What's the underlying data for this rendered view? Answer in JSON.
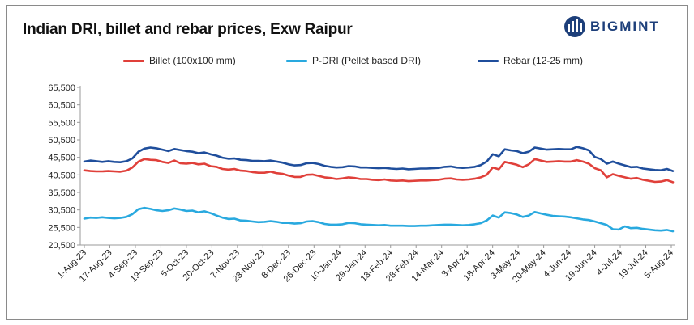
{
  "brand": {
    "name": "BIGMINT",
    "color": "#1d3f7a"
  },
  "chart_data": {
    "type": "line",
    "title": "Indian DRI, billet and rebar prices, Exw Raipur",
    "xlabel": "",
    "ylabel": "",
    "ylim": [
      20500,
      65500
    ],
    "yticks": [
      20500,
      25500,
      30500,
      35500,
      40500,
      45500,
      50500,
      55500,
      60500,
      65500
    ],
    "ytick_labels": [
      "20,500",
      "25,500",
      "30,500",
      "35,500",
      "40,500",
      "45,500",
      "50,500",
      "55,500",
      "60,500",
      "65,500"
    ],
    "x_tick_labels": [
      "1-Aug-23",
      "17-Aug-23",
      "4-Sep-23",
      "19-Sep-23",
      "5-Oct-23",
      "20-Oct-23",
      "7-Nov-23",
      "23-Nov-23",
      "8-Dec-23",
      "26-Dec-23",
      "10-Jan-24",
      "29-Jan-24",
      "13-Feb-24",
      "28-Feb-24",
      "14-Mar-24",
      "3-Apr-24",
      "18-Apr-24",
      "3-May-24",
      "20-May-24",
      "4-Jun-24",
      "19-Jun-24",
      "4-Jul-24",
      "19-Jul-24",
      "5-Aug-24"
    ],
    "grid": false,
    "legend_position": "top",
    "series": [
      {
        "name": "Billet (100x100 mm)",
        "color": "#e0403a",
        "values": [
          41800,
          41600,
          41500,
          41500,
          41600,
          41500,
          41400,
          41700,
          42600,
          44300,
          45000,
          44800,
          44700,
          44200,
          43900,
          44600,
          43800,
          43700,
          43900,
          43500,
          43700,
          43000,
          42800,
          42200,
          42000,
          42200,
          41700,
          41600,
          41300,
          41100,
          41100,
          41400,
          41000,
          40800,
          40300,
          39900,
          39900,
          40500,
          40600,
          40200,
          39800,
          39600,
          39300,
          39500,
          39800,
          39600,
          39300,
          39300,
          39100,
          39000,
          39200,
          38900,
          38800,
          38900,
          38700,
          38800,
          38900,
          38900,
          39000,
          39100,
          39400,
          39500,
          39200,
          39100,
          39200,
          39400,
          39800,
          40500,
          42600,
          42100,
          44200,
          43800,
          43400,
          42700,
          43500,
          45000,
          44600,
          44200,
          44300,
          44400,
          44300,
          44300,
          44700,
          44300,
          43700,
          42400,
          41800,
          39800,
          40700,
          40200,
          39800,
          39400,
          39600,
          39100,
          38800,
          38500,
          38600,
          39000,
          38400
        ]
      },
      {
        "name": "P-DRI (Pellet based DRI)",
        "color": "#29a9df",
        "values": [
          28000,
          28300,
          28200,
          28400,
          28200,
          28100,
          28200,
          28500,
          29300,
          30700,
          31100,
          30800,
          30400,
          30200,
          30400,
          30900,
          30600,
          30200,
          30300,
          29800,
          30100,
          29600,
          28900,
          28300,
          27900,
          28000,
          27500,
          27400,
          27200,
          27000,
          27100,
          27300,
          27100,
          26800,
          26800,
          26600,
          26700,
          27200,
          27300,
          27000,
          26500,
          26300,
          26300,
          26400,
          26800,
          26700,
          26400,
          26300,
          26200,
          26100,
          26200,
          26000,
          26000,
          26000,
          25900,
          25900,
          26000,
          26000,
          26100,
          26200,
          26300,
          26300,
          26200,
          26100,
          26200,
          26400,
          26700,
          27500,
          28900,
          28300,
          29800,
          29600,
          29200,
          28500,
          28900,
          29900,
          29500,
          29100,
          28800,
          28700,
          28600,
          28400,
          28100,
          27800,
          27600,
          27200,
          26700,
          26200,
          25000,
          24900,
          25800,
          25300,
          25400,
          25100,
          24900,
          24700,
          24600,
          24800,
          24400
        ]
      },
      {
        "name": "Rebar (12-25 mm)",
        "color": "#1f4e9c",
        "values": [
          44300,
          44600,
          44400,
          44200,
          44400,
          44200,
          44100,
          44400,
          45200,
          47100,
          48000,
          48300,
          48100,
          47700,
          47300,
          47900,
          47600,
          47300,
          47100,
          46700,
          46900,
          46400,
          46000,
          45400,
          45100,
          45200,
          44800,
          44700,
          44500,
          44500,
          44400,
          44600,
          44300,
          44000,
          43500,
          43200,
          43300,
          43800,
          43900,
          43600,
          43100,
          42800,
          42600,
          42700,
          43000,
          42900,
          42600,
          42600,
          42500,
          42400,
          42500,
          42300,
          42200,
          42300,
          42100,
          42200,
          42300,
          42300,
          42400,
          42500,
          42800,
          42900,
          42600,
          42500,
          42600,
          42800,
          43300,
          44300,
          46400,
          45800,
          47800,
          47500,
          47300,
          46700,
          47100,
          48300,
          48000,
          47700,
          47800,
          47900,
          47800,
          47800,
          48500,
          48100,
          47500,
          45600,
          45000,
          43700,
          44300,
          43700,
          43200,
          42700,
          42800,
          42300,
          42100,
          41900,
          41800,
          42200,
          41600
        ]
      }
    ]
  }
}
